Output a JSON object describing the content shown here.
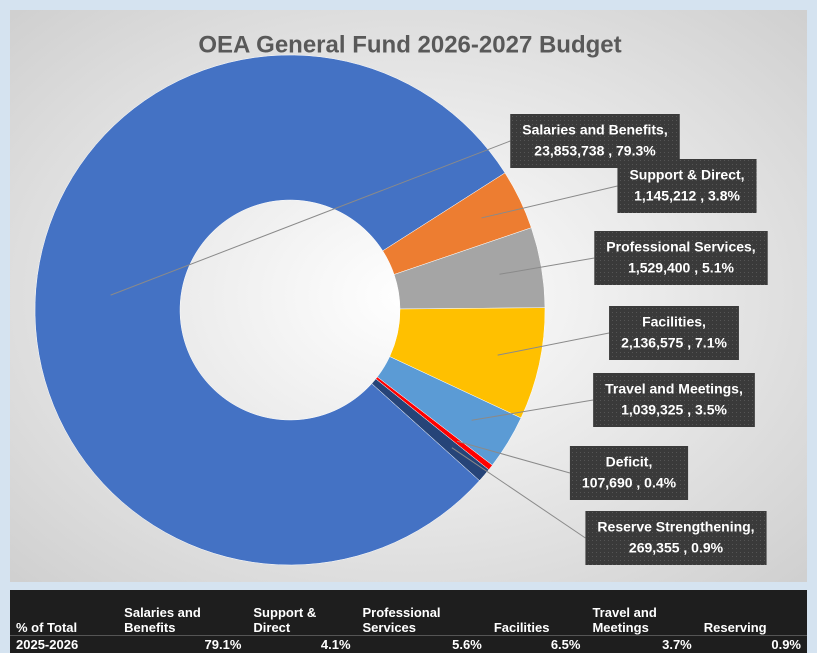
{
  "chart_data": {
    "type": "donut",
    "title": "OEA General Fund 2026-2027 Budget",
    "categories": [
      "Salaries and Benefits,",
      "Support & Direct,",
      "Professional Services,",
      "Facilities,",
      "Travel and Meetings,",
      "Deficit,",
      "Reserve Strengthening,"
    ],
    "values": [
      23853738,
      1145212,
      1529400,
      2136575,
      1039325,
      107690,
      269355
    ],
    "value_labels": [
      "23,853,738 , 79.3%",
      "1,145,212 , 3.8%",
      "1,529,400 , 5.1%",
      "2,136,575 , 7.1%",
      "1,039,325 , 3.5%",
      "107,690 , 0.4%",
      "269,355 , 0.9%"
    ],
    "colors": [
      "#4472c4",
      "#ed7d31",
      "#a5a5a5",
      "#ffc000",
      "#5b9bd5",
      "#ff0000",
      "#264478"
    ]
  },
  "table": {
    "header": [
      "% of Total",
      "Salaries and\nBenefits",
      "Support &\nDirect",
      "Professional\nServices",
      "Facilities",
      "Travel and\nMeetings",
      "Reserving"
    ],
    "rows": [
      [
        "2025-2026",
        "79.1%",
        "4.1%",
        "5.6%",
        "6.5%",
        "3.7%",
        "0.9%"
      ]
    ]
  }
}
